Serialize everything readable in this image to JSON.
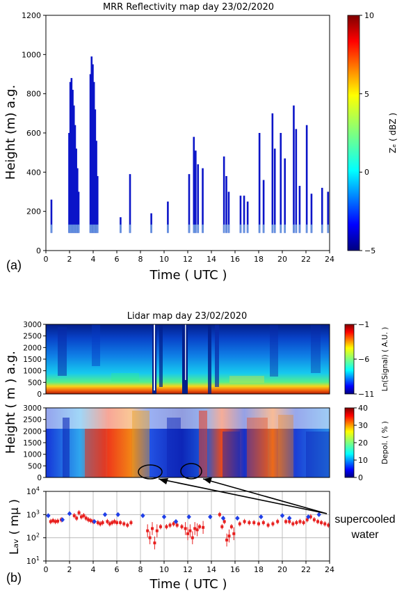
{
  "panel_a": {
    "title": "MRR Reflectivity map day 23/02/2020",
    "ylabel": "Height (m) a.g.",
    "xlabel": "Time ( UTC )",
    "panel_label": "(a)",
    "cbar_label": "Zₑ ( dBZ )",
    "cbar_ticks": [
      "10",
      "5",
      "0",
      "−5"
    ]
  },
  "panel_b": {
    "title": "Lidar map day 23/02/2020",
    "ylabel": "Height ( m ) a.g.",
    "bottom_ylabel": "Lₐᵥ ( mμ )",
    "xlabel": "Time ( UTC )",
    "panel_label": "(b)",
    "cbar1_label": "Ln(Signal) ( A.U. )",
    "cbar1_ticks": [
      "−1",
      "−6",
      "−11"
    ],
    "cbar2_label": "Depol. ( % )",
    "cbar2_ticks": [
      "40",
      "30",
      "20",
      "10",
      "0"
    ],
    "annotation_line1": "supercooled",
    "annotation_line2": "water"
  },
  "chart_data": [
    {
      "type": "heatmap",
      "title": "MRR Reflectivity map day 23/02/2020",
      "xlabel": "Time ( UTC )",
      "ylabel": "Height (m) a.g.",
      "xlim": [
        0,
        24
      ],
      "ylim": [
        0,
        1200
      ],
      "x_ticks": [
        0,
        2,
        4,
        6,
        8,
        10,
        12,
        14,
        16,
        18,
        20,
        22,
        24
      ],
      "y_ticks": [
        0,
        200,
        400,
        600,
        800,
        1000,
        1200
      ],
      "colorbar": {
        "label": "Ze ( dBZ )",
        "range": [
          -5,
          10
        ],
        "ticks": [
          -5,
          0,
          5,
          10
        ]
      },
      "echo_columns": [
        {
          "t": 0.45,
          "top": 260
        },
        {
          "t": 1.95,
          "top": 600
        },
        {
          "t": 2.05,
          "top": 860
        },
        {
          "t": 2.15,
          "top": 880
        },
        {
          "t": 2.25,
          "top": 820
        },
        {
          "t": 2.35,
          "top": 740
        },
        {
          "t": 2.45,
          "top": 640
        },
        {
          "t": 2.55,
          "top": 520
        },
        {
          "t": 2.65,
          "top": 420
        },
        {
          "t": 2.75,
          "top": 300
        },
        {
          "t": 3.75,
          "top": 900
        },
        {
          "t": 3.85,
          "top": 990
        },
        {
          "t": 3.95,
          "top": 950
        },
        {
          "t": 4.05,
          "top": 860
        },
        {
          "t": 4.15,
          "top": 720
        },
        {
          "t": 4.25,
          "top": 560
        },
        {
          "t": 4.35,
          "top": 380
        },
        {
          "t": 6.3,
          "top": 170
        },
        {
          "t": 7.1,
          "top": 390
        },
        {
          "t": 8.9,
          "top": 190
        },
        {
          "t": 10.3,
          "top": 250
        },
        {
          "t": 12.1,
          "top": 390
        },
        {
          "t": 12.5,
          "top": 580
        },
        {
          "t": 12.65,
          "top": 510
        },
        {
          "t": 12.85,
          "top": 440
        },
        {
          "t": 13.25,
          "top": 420
        },
        {
          "t": 15.05,
          "top": 480
        },
        {
          "t": 15.25,
          "top": 380
        },
        {
          "t": 15.45,
          "top": 300
        },
        {
          "t": 16.45,
          "top": 280
        },
        {
          "t": 16.75,
          "top": 280
        },
        {
          "t": 17.05,
          "top": 250
        },
        {
          "t": 18.05,
          "top": 600
        },
        {
          "t": 18.4,
          "top": 360
        },
        {
          "t": 19.15,
          "top": 700
        },
        {
          "t": 19.35,
          "top": 520
        },
        {
          "t": 19.85,
          "top": 600
        },
        {
          "t": 20.2,
          "top": 470
        },
        {
          "t": 20.95,
          "top": 740
        },
        {
          "t": 21.15,
          "top": 620
        },
        {
          "t": 21.45,
          "top": 330
        },
        {
          "t": 22.05,
          "top": 640
        },
        {
          "t": 22.45,
          "top": 290
        },
        {
          "t": 23.35,
          "top": 320
        },
        {
          "t": 23.85,
          "top": 300
        }
      ]
    },
    {
      "type": "heatmap",
      "title": "Lidar map day 23/02/2020",
      "ylabel": "Height ( m ) a.g.",
      "xlim": [
        0,
        24
      ],
      "ylim": [
        0,
        3000
      ],
      "y_ticks": [
        0,
        500,
        1000,
        1500,
        2000,
        2500,
        3000
      ],
      "colorbar": {
        "label": "Ln(Signal) ( A.U. )",
        "range": [
          -11,
          -1
        ],
        "ticks": [
          -11,
          -6,
          -1
        ]
      }
    },
    {
      "type": "heatmap",
      "ylabel": "Height ( m ) a.g.",
      "xlim": [
        0,
        24
      ],
      "ylim": [
        0,
        3000
      ],
      "y_ticks": [
        0,
        500,
        1000,
        1500,
        2000,
        2500,
        3000
      ],
      "colorbar": {
        "label": "Depol. ( % )",
        "range": [
          0,
          40
        ],
        "ticks": [
          0,
          10,
          20,
          30,
          40
        ]
      },
      "annotations": [
        "supercooled water",
        "supercooled water"
      ]
    },
    {
      "type": "scatter",
      "xlabel": "Time ( UTC )",
      "ylabel": "Lav ( mμ )",
      "xlim": [
        0,
        24
      ],
      "ylim": [
        10,
        10000
      ],
      "yscale": "log",
      "x_ticks": [
        0,
        2,
        4,
        6,
        8,
        10,
        12,
        14,
        16,
        18,
        20,
        22,
        24
      ],
      "y_ticks": [
        10,
        100,
        1000,
        10000
      ],
      "grid": true,
      "series": [
        {
          "color": "#e8201f",
          "x": [
            0.4,
            0.6,
            0.8,
            1.0,
            1.3,
            2.4,
            2.6,
            2.8,
            3.0,
            3.2,
            3.4,
            3.6,
            3.8,
            4.0,
            4.4,
            4.6,
            4.8,
            5.2,
            5.4,
            5.6,
            5.8,
            6.0,
            6.3,
            6.6,
            6.9,
            7.2,
            8.6,
            8.8,
            9.0,
            9.2,
            9.4,
            9.7,
            10.2,
            10.5,
            10.8,
            11.1,
            11.5,
            11.8,
            12.0,
            12.2,
            12.4,
            12.6,
            12.8,
            13.0,
            13.3,
            14.7,
            14.9,
            15.1,
            15.3,
            15.5,
            15.7,
            15.9,
            16.4,
            16.8,
            17.2,
            17.6,
            18.0,
            18.4,
            18.8,
            19.2,
            19.6,
            20.3,
            20.6,
            20.9,
            21.2,
            21.5,
            21.8,
            22.1,
            22.4,
            22.7,
            23.0,
            23.3,
            23.6,
            23.9
          ],
          "y": [
            500,
            550,
            500,
            520,
            600,
            900,
            700,
            1200,
            800,
            900,
            700,
            600,
            550,
            500,
            450,
            400,
            450,
            500,
            400,
            450,
            500,
            450,
            450,
            400,
            350,
            450,
            200,
            100,
            250,
            60,
            200,
            300,
            300,
            350,
            400,
            350,
            300,
            250,
            150,
            200,
            100,
            250,
            220,
            300,
            280,
            1000,
            300,
            500,
            80,
            120,
            300,
            150,
            400,
            500,
            450,
            450,
            400,
            450,
            350,
            400,
            500,
            500,
            500,
            400,
            450,
            500,
            450,
            600,
            800,
            600,
            500,
            450,
            400,
            350
          ]
        },
        {
          "color": "#1f3fe8",
          "x": [
            0.2,
            1.4,
            2.0,
            4.1,
            5.0,
            6.1,
            8.2,
            10.0,
            11.0,
            12.1,
            13.9,
            15.0,
            16.2,
            18.2,
            20.0,
            20.6,
            22.2,
            23.1
          ],
          "y": [
            900,
            600,
            1100,
            500,
            1000,
            1000,
            900,
            800,
            500,
            800,
            800,
            700,
            700,
            800,
            900,
            700,
            800,
            1000
          ]
        }
      ]
    }
  ]
}
